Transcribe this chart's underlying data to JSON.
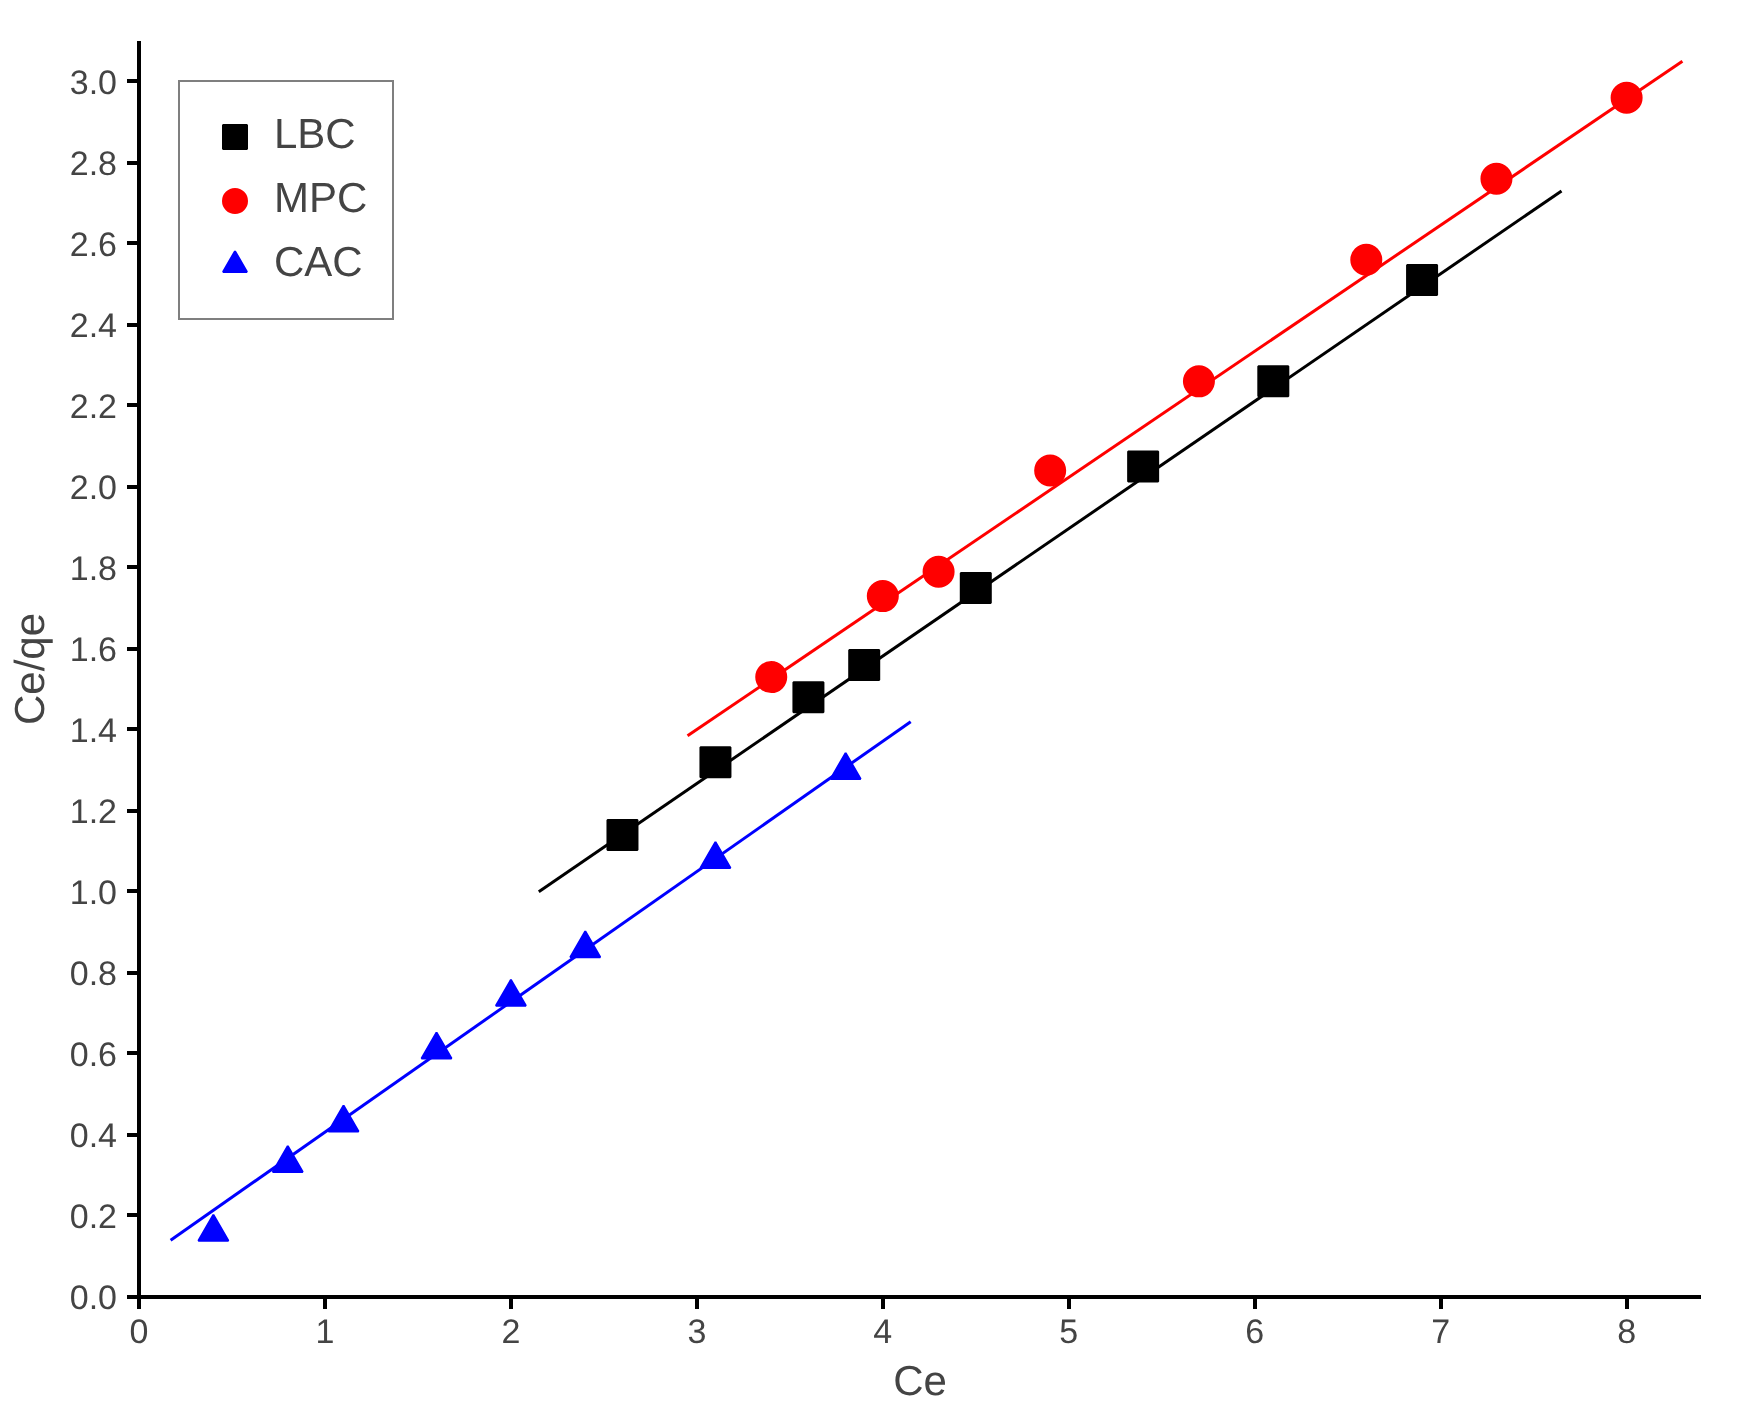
{
  "chart_data": {
    "type": "scatter",
    "xlabel": "Ce",
    "ylabel": "Ce/qe",
    "xlim": [
      0,
      8.4
    ],
    "ylim": [
      0,
      3.1
    ],
    "xticks": [
      0,
      1,
      2,
      3,
      4,
      5,
      6,
      7,
      8
    ],
    "yticks": [
      {
        "value": 0,
        "label": "0.0"
      },
      {
        "value": 0.2,
        "label": "0.2"
      },
      {
        "value": 0.4,
        "label": "0.4"
      },
      {
        "value": 0.6,
        "label": "0.6"
      },
      {
        "value": 0.8,
        "label": "0.8"
      },
      {
        "value": 1,
        "label": "1.0"
      },
      {
        "value": 1.2,
        "label": "1.2"
      },
      {
        "value": 1.4,
        "label": "1.4"
      },
      {
        "value": 1.6,
        "label": "1.6"
      },
      {
        "value": 1.8,
        "label": "1.8"
      },
      {
        "value": 2,
        "label": "2.0"
      },
      {
        "value": 2.2,
        "label": "2.2"
      },
      {
        "value": 2.4,
        "label": "2.4"
      },
      {
        "value": 2.6,
        "label": "2.6"
      },
      {
        "value": 2.8,
        "label": "2.8"
      },
      {
        "value": 3,
        "label": "3.0"
      }
    ],
    "grid": false,
    "legend": "top left",
    "series": [
      {
        "name": "LBC",
        "color": "#000000",
        "marker": "square",
        "x": [
          2.6,
          3.1,
          3.6,
          3.9,
          4.5,
          5.4,
          6.1,
          6.9
        ],
        "values": [
          1.14,
          1.32,
          1.48,
          1.56,
          1.75,
          2.05,
          2.26,
          2.51
        ]
      },
      {
        "name": "MPC",
        "color": "#ff0000",
        "marker": "circle",
        "x": [
          3.4,
          4.0,
          4.3,
          4.9,
          5.7,
          6.6,
          7.3,
          8.0
        ],
        "values": [
          1.53,
          1.73,
          1.79,
          2.04,
          2.26,
          2.56,
          2.76,
          2.96
        ]
      },
      {
        "name": "CAC",
        "color": "#0000ff",
        "marker": "triangle",
        "x": [
          0.4,
          0.8,
          1.1,
          1.6,
          2.0,
          2.4,
          3.1,
          3.8
        ],
        "values": [
          0.16,
          0.33,
          0.43,
          0.61,
          0.74,
          0.86,
          1.08,
          1.3
        ]
      },
      {
        "type": "line",
        "color": "#000000",
        "x": [
          2.15,
          7.65
        ],
        "values": [
          1.0,
          2.73
        ]
      },
      {
        "type": "line",
        "color": "#ff0000",
        "x": [
          2.95,
          8.3
        ],
        "values": [
          1.385,
          3.05
        ]
      },
      {
        "type": "line",
        "color": "#0000ff",
        "x": [
          0.17,
          4.15
        ],
        "values": [
          0.14,
          1.42
        ]
      }
    ]
  }
}
